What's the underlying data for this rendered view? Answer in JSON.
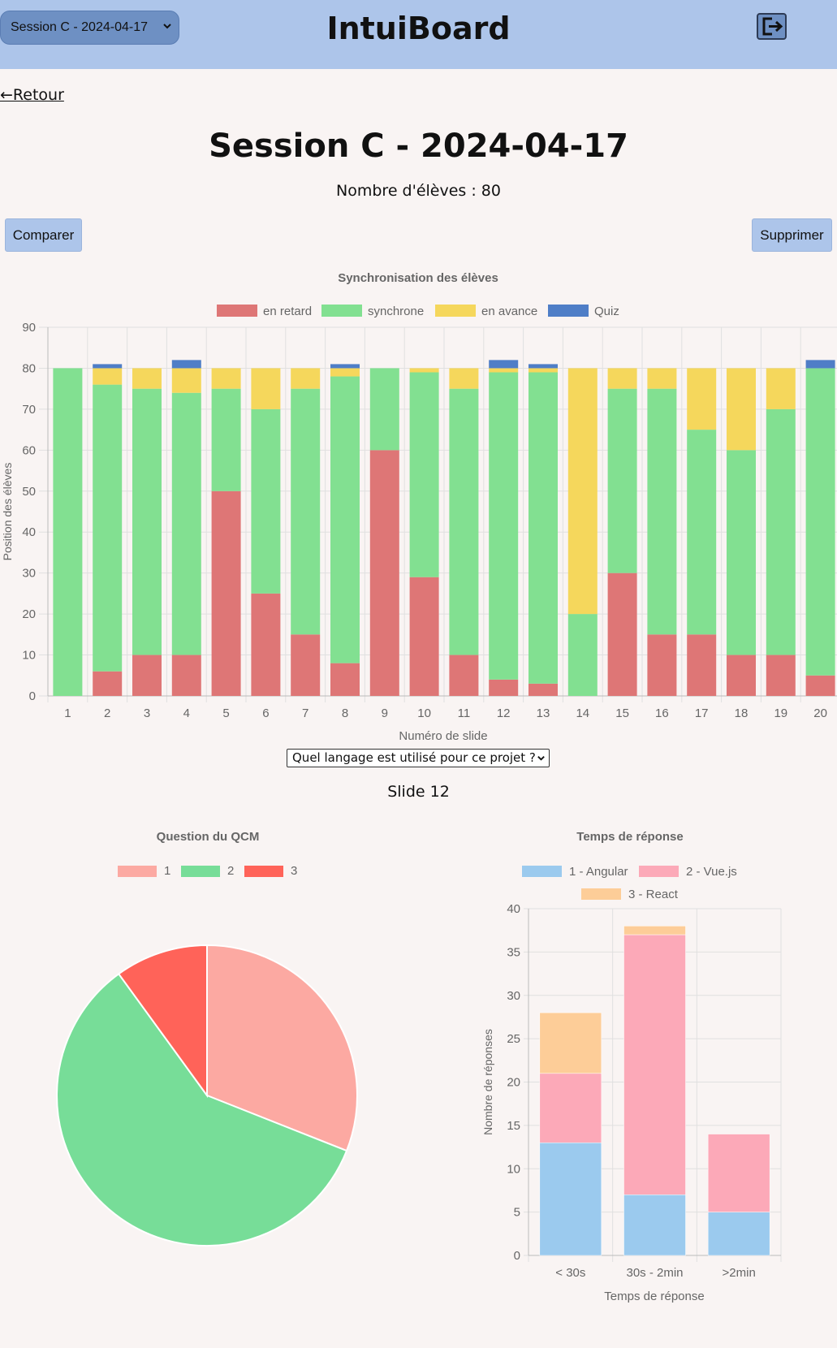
{
  "header": {
    "session_select": "Session C - 2024-04-17",
    "app_title": "IntuiBoard",
    "logout_icon": "logout-icon"
  },
  "nav": {
    "back_label": "←Retour"
  },
  "page": {
    "title": "Session C - 2024-04-17",
    "student_count": "Nombre d'élèves : 80",
    "compare_label": "Comparer",
    "delete_label": "Supprimer",
    "question_select": "Quel langage est utilisé pour ce projet ?",
    "slide_label": "Slide 12"
  },
  "colors": {
    "late": "#de7676",
    "sync": "#82e091",
    "ahead": "#f5d75c",
    "quiz": "#4f7ec7",
    "pie_1": "#fca9a2",
    "pie_2": "#77dd98",
    "pie_3": "#ff6359",
    "angular": "#9bcaee",
    "vue": "#fca9b8",
    "react": "#fdcd98"
  },
  "chart_data": [
    {
      "type": "bar",
      "stacked": true,
      "title": "Synchronisation des élèves",
      "xlabel": "Numéro de slide",
      "ylabel": "Position des élèves",
      "ylim": [
        0,
        90
      ],
      "yticks": [
        0,
        10,
        20,
        30,
        40,
        50,
        60,
        70,
        80,
        90
      ],
      "legend_position": "top",
      "grid": true,
      "categories": [
        "1",
        "2",
        "3",
        "4",
        "5",
        "6",
        "7",
        "8",
        "9",
        "10",
        "11",
        "12",
        "13",
        "14",
        "15",
        "16",
        "17",
        "18",
        "19",
        "20"
      ],
      "series": [
        {
          "name": "en retard",
          "color": "#de7676",
          "values": [
            0,
            6,
            10,
            10,
            50,
            25,
            15,
            8,
            60,
            29,
            10,
            4,
            3,
            0,
            30,
            15,
            15,
            10,
            10,
            5
          ]
        },
        {
          "name": "synchrone",
          "color": "#82e091",
          "values": [
            80,
            70,
            65,
            64,
            25,
            45,
            60,
            70,
            20,
            50,
            65,
            75,
            76,
            20,
            45,
            60,
            50,
            50,
            60,
            75
          ]
        },
        {
          "name": "en avance",
          "color": "#f5d75c",
          "values": [
            0,
            4,
            5,
            6,
            5,
            10,
            5,
            2,
            0,
            1,
            5,
            1,
            1,
            60,
            5,
            5,
            15,
            20,
            10,
            0
          ]
        },
        {
          "name": "Quiz",
          "color": "#4f7ec7",
          "values": [
            0,
            1,
            0,
            2,
            0,
            0,
            0,
            1,
            0,
            0,
            0,
            2,
            1,
            0,
            0,
            0,
            0,
            0,
            0,
            2
          ]
        }
      ]
    },
    {
      "type": "pie",
      "title": "Question du QCM",
      "legend_position": "top",
      "categories": [
        "1",
        "2",
        "3"
      ],
      "values": [
        31,
        59,
        10
      ],
      "colors": [
        "#fca9a2",
        "#77dd98",
        "#ff6359"
      ]
    },
    {
      "type": "bar",
      "stacked": true,
      "title": "Temps de réponse",
      "xlabel": "Temps de réponse",
      "ylabel": "Nombre de réponses",
      "ylim": [
        0,
        40
      ],
      "yticks": [
        0,
        5,
        10,
        15,
        20,
        25,
        30,
        35,
        40
      ],
      "legend_position": "top",
      "grid": true,
      "categories": [
        "< 30s",
        "30s - 2min",
        ">2min"
      ],
      "series": [
        {
          "name": "1 - Angular",
          "color": "#9bcaee",
          "values": [
            13,
            7,
            5
          ]
        },
        {
          "name": "2 - Vue.js",
          "color": "#fca9b8",
          "values": [
            8,
            30,
            9
          ]
        },
        {
          "name": "3 - React",
          "color": "#fdcd98",
          "values": [
            7,
            1,
            0
          ]
        }
      ]
    }
  ]
}
